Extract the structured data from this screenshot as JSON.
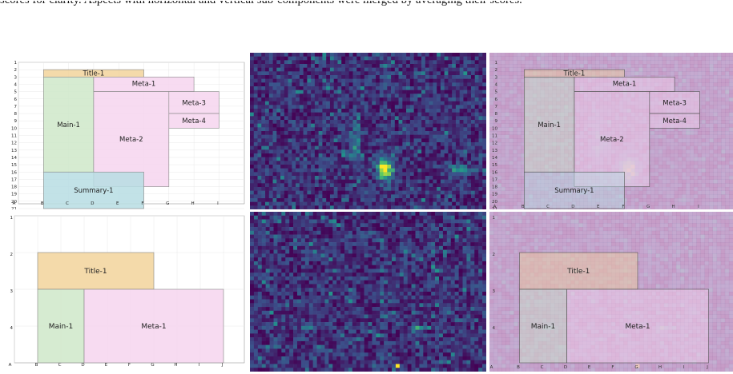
{
  "caption": "scores for clarity. Aspects with horizontal and vertical sub-components were merged by averaging their scores.",
  "top_row": {
    "rows": [
      "1",
      "2",
      "3",
      "4",
      "5",
      "6",
      "7",
      "8",
      "9",
      "10",
      "11",
      "12",
      "13",
      "14",
      "15",
      "16",
      "17",
      "18",
      "19",
      "20",
      "21"
    ],
    "cols": [
      "A",
      "B",
      "C",
      "D",
      "E",
      "F",
      "G",
      "H",
      "I"
    ],
    "regions": [
      {
        "label": "Title-1",
        "type": "title",
        "col_start": 1,
        "col_end": 5,
        "row_start": 1,
        "row_end": 2
      },
      {
        "label": "Main-1",
        "type": "main",
        "col_start": 1,
        "col_end": 3,
        "row_start": 2,
        "row_end": 15
      },
      {
        "label": "Meta-1",
        "type": "meta",
        "col_start": 3,
        "col_end": 7,
        "row_start": 2,
        "row_end": 4
      },
      {
        "label": "Meta-2",
        "type": "meta",
        "col_start": 3,
        "col_end": 6,
        "row_start": 4,
        "row_end": 17
      },
      {
        "label": "Meta-3",
        "type": "meta",
        "col_start": 6,
        "col_end": 8,
        "row_start": 4,
        "row_end": 7
      },
      {
        "label": "Meta-4",
        "type": "meta",
        "col_start": 6,
        "col_end": 8,
        "row_start": 7,
        "row_end": 9
      },
      {
        "label": "Summary-1",
        "type": "summary",
        "col_start": 1,
        "col_end": 5,
        "row_start": 15,
        "row_end": 20
      }
    ]
  },
  "bottom_row": {
    "rows": [
      "1",
      "2",
      "3",
      "4"
    ],
    "cols": [
      "A",
      "B",
      "C",
      "D",
      "E",
      "F",
      "G",
      "H",
      "I",
      "J"
    ],
    "regions": [
      {
        "label": "Title-1",
        "type": "title",
        "col_start": 1,
        "col_end": 6,
        "row_start": 1,
        "row_end": 2
      },
      {
        "label": "Main-1",
        "type": "main",
        "col_start": 1,
        "col_end": 3,
        "row_start": 2,
        "row_end": 4
      },
      {
        "label": "Meta-1",
        "type": "meta",
        "col_start": 3,
        "col_end": 9,
        "row_start": 2,
        "row_end": 4
      }
    ]
  },
  "colors": {
    "title": "#f2d39b",
    "main": "#cfe7c9",
    "meta": "#f6d5ef",
    "summary": "#b7dde3",
    "heat_low": "#440154",
    "heat_mid": "#21918c",
    "heat_high": "#fde725"
  }
}
